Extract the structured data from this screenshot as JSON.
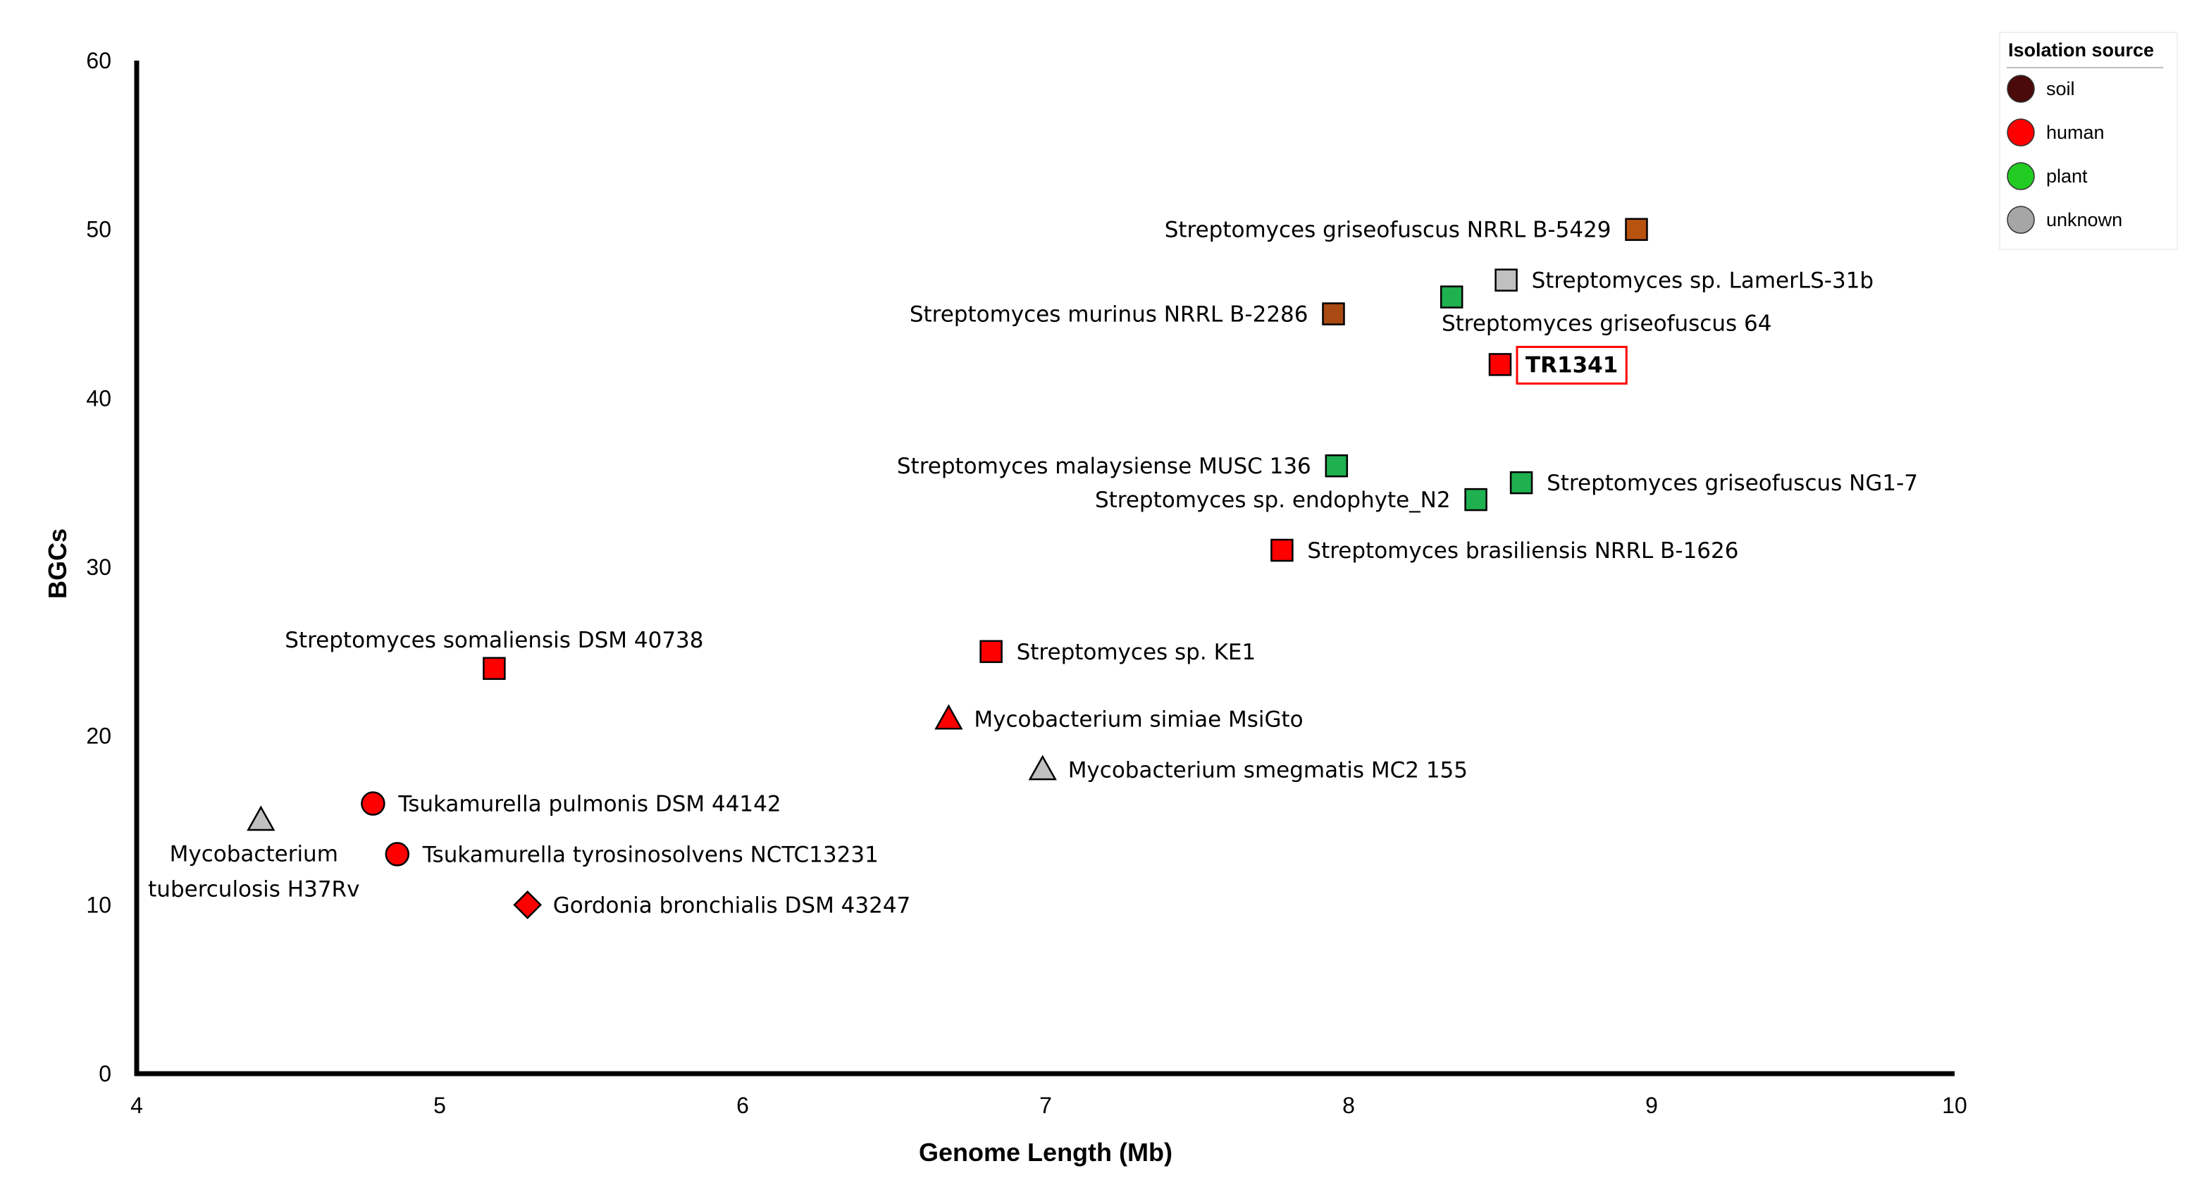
{
  "chart_data": {
    "type": "scatter",
    "title": "",
    "xlabel": "Genome Length (Mb)",
    "ylabel": "BGCs",
    "xlim": [
      4,
      10
    ],
    "ylim": [
      0,
      60
    ],
    "xticks": [
      "4",
      "5",
      "6",
      "7",
      "8",
      "9",
      "10"
    ],
    "yticks": [
      "0",
      "10",
      "20",
      "30",
      "40",
      "50",
      "60"
    ],
    "legend": {
      "title": "Isolation source",
      "position": "top-right",
      "entries": [
        {
          "label": "soil",
          "color": "#4a0a0a"
        },
        {
          "label": "human",
          "color": "#ff0000"
        },
        {
          "label": "plant",
          "color": "#22cc22"
        },
        {
          "label": "unknown",
          "color": "#a6a6a6"
        }
      ]
    },
    "points": [
      {
        "name": "Streptomyces griseofuscus NRRL B-5429",
        "x": 8.95,
        "y": 50,
        "shape": "square",
        "color": "#b8520f",
        "label_pos": "left"
      },
      {
        "name": "Streptomyces sp. LamerLS-31b",
        "x": 8.52,
        "y": 47,
        "shape": "square",
        "color": "#c0c0c0",
        "label_pos": "right"
      },
      {
        "name": "Streptomyces murinus NRRL B-2286",
        "x": 7.95,
        "y": 45,
        "shape": "square",
        "color": "#a84a12",
        "label_pos": "left"
      },
      {
        "name": "Streptomyces griseofuscus 64",
        "x": 8.34,
        "y": 46,
        "shape": "square",
        "color": "#1fb050",
        "label_pos": "below"
      },
      {
        "name": "TR1341",
        "x": 8.5,
        "y": 42,
        "shape": "square",
        "color": "#ff0000",
        "label_pos": "right-box",
        "highlight": true
      },
      {
        "name": "Streptomyces malaysiense MUSC 136",
        "x": 7.96,
        "y": 36,
        "shape": "square",
        "color": "#1fb050",
        "label_pos": "left"
      },
      {
        "name": "Streptomyces griseofuscus NG1-7",
        "x": 8.57,
        "y": 35,
        "shape": "square",
        "color": "#1fb050",
        "label_pos": "right"
      },
      {
        "name": "Streptomyces sp. endophyte_N2",
        "x": 8.42,
        "y": 34,
        "shape": "square",
        "color": "#1fb050",
        "label_pos": "left"
      },
      {
        "name": "Streptomyces brasiliensis NRRL B-1626",
        "x": 7.78,
        "y": 31,
        "shape": "square",
        "color": "#ff0000",
        "label_pos": "right"
      },
      {
        "name": "Streptomyces sp. KE1",
        "x": 6.82,
        "y": 25,
        "shape": "square",
        "color": "#ff0000",
        "label_pos": "right"
      },
      {
        "name": "Streptomyces somaliensis DSM 40738",
        "x": 5.18,
        "y": 24,
        "shape": "square",
        "color": "#ff0000",
        "label_pos": "above"
      },
      {
        "name": "Mycobacterium simiae MsiGto",
        "x": 6.68,
        "y": 21,
        "shape": "triangle",
        "color": "#ff0000",
        "label_pos": "right"
      },
      {
        "name": "Mycobacterium smegmatis MC2 155",
        "x": 6.99,
        "y": 18,
        "shape": "triangle",
        "color": "#c0c0c0",
        "label_pos": "right"
      },
      {
        "name": "Tsukamurella pulmonis DSM 44142",
        "x": 4.78,
        "y": 16,
        "shape": "circle",
        "color": "#ff0000",
        "label_pos": "right"
      },
      {
        "name": "Mycobacterium tuberculosis H37Rv",
        "x": 4.41,
        "y": 15,
        "shape": "triangle",
        "color": "#c0c0c0",
        "label_pos": "below-two-line"
      },
      {
        "name": "Tsukamurella tyrosinosolvens NCTC13231",
        "x": 4.86,
        "y": 13,
        "shape": "circle",
        "color": "#ff0000",
        "label_pos": "right"
      },
      {
        "name": "Gordonia bronchialis DSM 43247",
        "x": 5.29,
        "y": 10,
        "shape": "diamond",
        "color": "#ff0000",
        "label_pos": "right"
      }
    ]
  }
}
